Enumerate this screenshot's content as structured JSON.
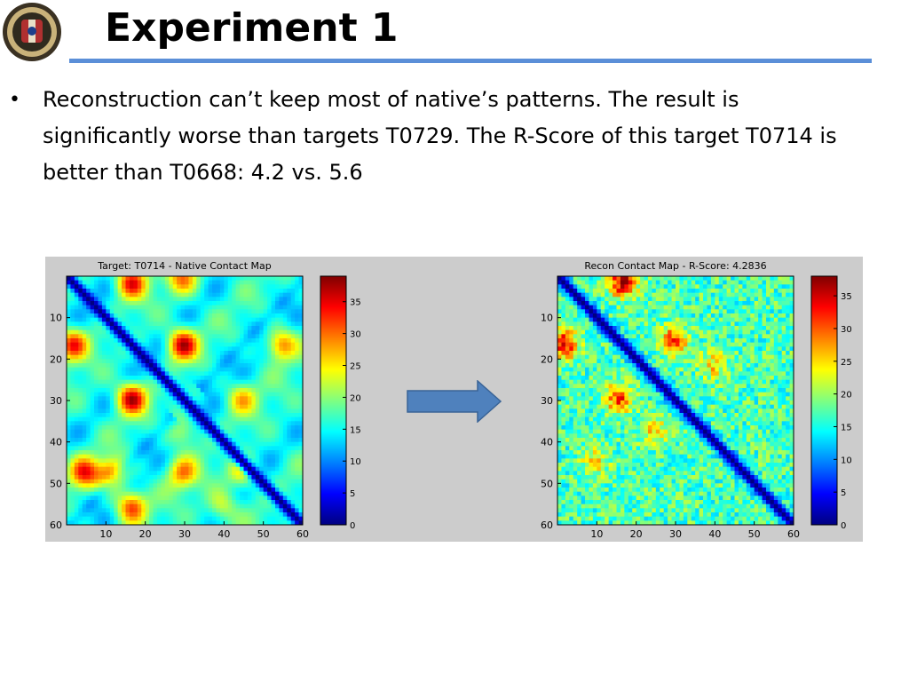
{
  "slide": {
    "title": "Experiment 1",
    "bullet": "Reconstruction can’t keep most of native’s patterns. The result is significantly worse than targets T0729. The R-Score of this target T0714 is better than T0668: 4.2 vs. 5.6",
    "accent_color": "#5b8fd8",
    "logo": "university-seal"
  },
  "figure": {
    "background": "#cccccc",
    "arrow_color": "#4f81bd",
    "arrow_icon": "right-arrow",
    "colormap": "jet"
  },
  "chart_data": [
    {
      "type": "heatmap",
      "title": "Target: T0714 - Native Contact Map",
      "size": 60,
      "xticks": [
        "10",
        "20",
        "30",
        "40",
        "50",
        "60"
      ],
      "yticks": [
        "10",
        "20",
        "30",
        "40",
        "50",
        "60"
      ],
      "colorbar": {
        "min": 0,
        "max": 39,
        "ticks": [
          "0",
          "5",
          "10",
          "15",
          "20",
          "25",
          "30",
          "35"
        ]
      },
      "diagonal_value": 0,
      "hotspots": [
        {
          "x": 17,
          "y": 2,
          "value": 34
        },
        {
          "x": 30,
          "y": 1,
          "value": 28
        },
        {
          "x": 2,
          "y": 17,
          "value": 33
        },
        {
          "x": 30,
          "y": 17,
          "value": 36
        },
        {
          "x": 55,
          "y": 17,
          "value": 30
        },
        {
          "x": 17,
          "y": 30,
          "value": 36
        },
        {
          "x": 45,
          "y": 30,
          "value": 26
        },
        {
          "x": 30,
          "y": 38,
          "value": 24
        },
        {
          "x": 5,
          "y": 48,
          "value": 32
        },
        {
          "x": 12,
          "y": 48,
          "value": 30
        },
        {
          "x": 30,
          "y": 48,
          "value": 28
        },
        {
          "x": 45,
          "y": 48,
          "value": 26
        },
        {
          "x": 17,
          "y": 56,
          "value": 32
        },
        {
          "x": 40,
          "y": 56,
          "value": 24
        }
      ]
    },
    {
      "type": "heatmap",
      "title": "Recon Contact Map - R-Score: 4.2836",
      "size": 60,
      "xticks": [
        "10",
        "20",
        "30",
        "40",
        "50",
        "60"
      ],
      "yticks": [
        "10",
        "20",
        "30",
        "40",
        "50",
        "60"
      ],
      "colorbar": {
        "min": 0,
        "max": 38,
        "ticks": [
          "0",
          "5",
          "10",
          "15",
          "20",
          "25",
          "30",
          "35"
        ]
      },
      "diagonal_value": 0,
      "hotspots": [
        {
          "x": 17,
          "y": 2,
          "value": 36
        },
        {
          "x": 2,
          "y": 17,
          "value": 35
        },
        {
          "x": 30,
          "y": 16,
          "value": 31
        },
        {
          "x": 16,
          "y": 30,
          "value": 31
        },
        {
          "x": 40,
          "y": 22,
          "value": 25
        },
        {
          "x": 25,
          "y": 38,
          "value": 25
        },
        {
          "x": 10,
          "y": 45,
          "value": 24
        }
      ]
    }
  ]
}
